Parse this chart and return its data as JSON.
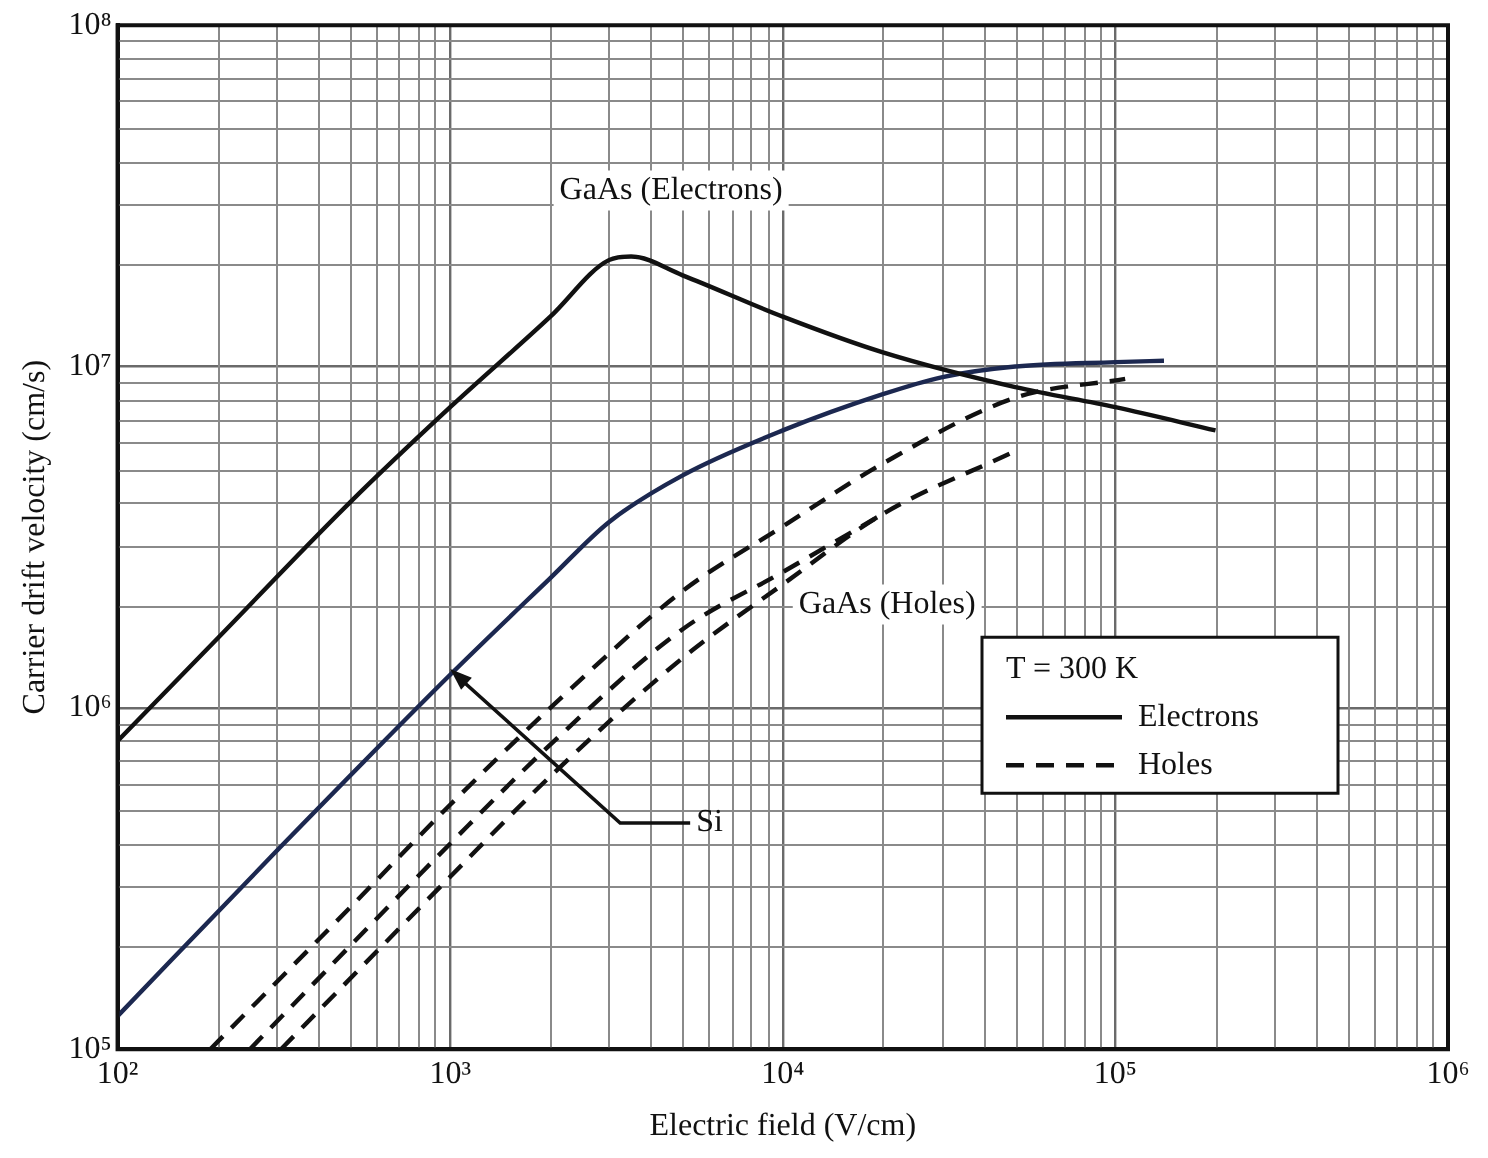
{
  "chart_data": {
    "type": "line",
    "xlabel": "Electric field (V/cm)",
    "ylabel": "Carrier drift velocity (cm/s)",
    "legend_title": "T = 300 K",
    "legend": "right",
    "log": "xy",
    "grid": true,
    "marker": "none",
    "xlim": [
      100,
      1000000
    ],
    "ylim": [
      100000,
      100000000
    ],
    "xticks": [
      {
        "value": 100,
        "label": "10²"
      },
      {
        "value": 1000,
        "label": "10³"
      },
      {
        "value": 10000,
        "label": "10⁴"
      },
      {
        "value": 100000,
        "label": "10⁵"
      },
      {
        "value": 1000000,
        "label": "10⁶"
      }
    ],
    "yticks": [
      {
        "value": 100000,
        "label": "10⁵"
      },
      {
        "value": 1000000,
        "label": "10⁶"
      },
      {
        "value": 10000000,
        "label": "10⁷"
      },
      {
        "value": 100000000,
        "label": "10⁸"
      }
    ],
    "series": [
      {
        "name": "Electrons",
        "color": "#111111",
        "line_style": "solid",
        "x": [
          100,
          200,
          500,
          1000,
          2000,
          3000,
          3500,
          5000,
          10000,
          20000,
          50000,
          100000,
          200000
        ],
        "values": [
          800000,
          1600000,
          4000000,
          7600000,
          14000000,
          20500000,
          21000000,
          18500000,
          14000000,
          11000000,
          8700000,
          7600000,
          6500000
        ]
      },
      {
        "color": "#1c2850",
        "line_style": "solid",
        "x": [
          100,
          300,
          1000,
          2000,
          3000,
          5000,
          10000,
          20000,
          30000,
          50000,
          100000,
          140000
        ],
        "values": [
          125000,
          380000,
          1250000,
          2400000,
          3500000,
          4800000,
          6500000,
          8300000,
          9300000,
          10000000,
          10300000,
          10400000
        ]
      },
      {
        "name": "Holes",
        "color": "#111111",
        "line_style": "dashed",
        "x": [
          190,
          500,
          1000,
          2000,
          5000,
          10000,
          20000,
          50000,
          107000
        ],
        "values": [
          100000,
          260000,
          520000,
          1000000,
          2200000,
          3400000,
          5200000,
          8100000,
          9200000
        ]
      },
      {
        "color": "#111111",
        "line_style": "dashed",
        "x": [
          250,
          1000,
          2000,
          5000,
          10000,
          20000
        ],
        "values": [
          100000,
          400000,
          780000,
          1700000,
          2500000,
          3700000
        ]
      },
      {
        "color": "#111111",
        "line_style": "dashed",
        "x": [
          310,
          1000,
          2000,
          5000,
          10000,
          20000,
          49000
        ],
        "values": [
          100000,
          320000,
          630000,
          1400000,
          2300000,
          3700000,
          5600000
        ]
      }
    ],
    "annotations": [
      "GaAs (Electrons)",
      "GaAs (Holes)",
      {
        "text": "Si",
        "x": 1000,
        "y": 1300000
      }
    ]
  }
}
